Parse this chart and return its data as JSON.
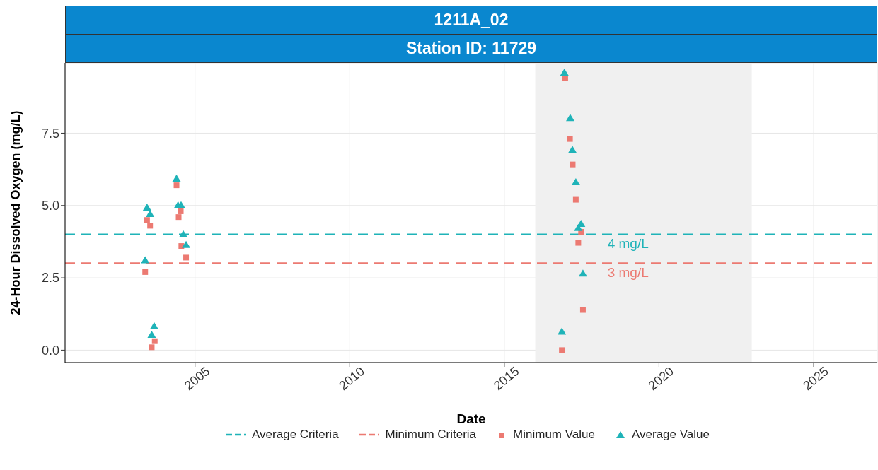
{
  "chart_data": {
    "type": "scatter",
    "title": "1211A_02",
    "subtitle": "Station ID: 11729",
    "xlabel": "Date",
    "ylabel": "24-Hour Dissolved Oxygen (mg/L)",
    "xlim": [
      "2000-10-19",
      "2027-01-22"
    ],
    "xticks": [
      "2005",
      "2010",
      "2015",
      "2020",
      "2025"
    ],
    "ylim": [
      -0.43,
      9.93
    ],
    "yticks": [
      {
        "value": 0,
        "label": "0.0"
      },
      2.5,
      {
        "value": 5,
        "label": "5.0"
      },
      7.5
    ],
    "grid": true,
    "legend": "bottom",
    "bands": [
      {
        "axis": "x",
        "from": "2016",
        "to": "2023",
        "color": "#f0f0f0"
      }
    ],
    "series": [
      {
        "name": "Average Criteria",
        "type": "line",
        "color": "#1fb3b8",
        "line_style": "dashed",
        "marker": "none",
        "x": [
          "2000-10-19",
          "2027-01-22"
        ],
        "values": [
          4,
          4
        ]
      },
      {
        "name": "Minimum Criteria",
        "type": "line",
        "color": "#ec7a72",
        "line_style": "dashed",
        "marker": "none",
        "x": [
          "2000-10-19",
          "2027-01-22"
        ],
        "values": [
          3,
          3
        ]
      },
      {
        "name": "Minimum Value",
        "color": "#ec7a72",
        "marker": "square",
        "x": [
          "2003-05-23",
          "2003-06-14",
          "2003-07-20",
          "2003-08-08",
          "2003-09-13",
          "2004-05-27",
          "2004-06-21",
          "2004-07-16",
          "2004-07-23",
          "2004-09-17",
          "2016-11-10",
          "2016-12-20",
          "2017-02-14",
          "2017-03-18",
          "2017-04-24",
          "2017-05-23",
          "2017-06-25",
          "2017-07-17"
        ],
        "values": [
          2.7,
          4.5,
          4.3,
          0.1,
          0.31,
          5.7,
          4.6,
          4.8,
          3.6,
          3.2,
          0.0,
          9.41,
          7.3,
          6.42,
          5.2,
          3.71,
          4.09,
          1.39
        ]
      },
      {
        "name": "Average Value",
        "color": "#1fb3b8",
        "marker": "triangle",
        "x": [
          "2003-05-23",
          "2003-06-14",
          "2003-07-20",
          "2003-08-08",
          "2003-09-06",
          "2004-05-27",
          "2004-06-14",
          "2004-07-20",
          "2004-08-15",
          "2004-09-17",
          "2016-11-10",
          "2016-12-10",
          "2017-02-17",
          "2017-03-15",
          "2017-04-24",
          "2017-05-23",
          "2017-06-25",
          "2017-07-17"
        ],
        "values": [
          3.1,
          4.92,
          4.7,
          0.52,
          0.82,
          5.92,
          5.0,
          5.0,
          4.0,
          3.63,
          0.63,
          9.59,
          8.02,
          6.92,
          5.8,
          4.22,
          4.36,
          2.64
        ]
      }
    ],
    "annotations": [
      {
        "text": "4 mg/L",
        "x": "2019-01",
        "y": 4
      },
      {
        "text": "3 mg/L",
        "x": "2019-01",
        "y": 3
      }
    ]
  }
}
